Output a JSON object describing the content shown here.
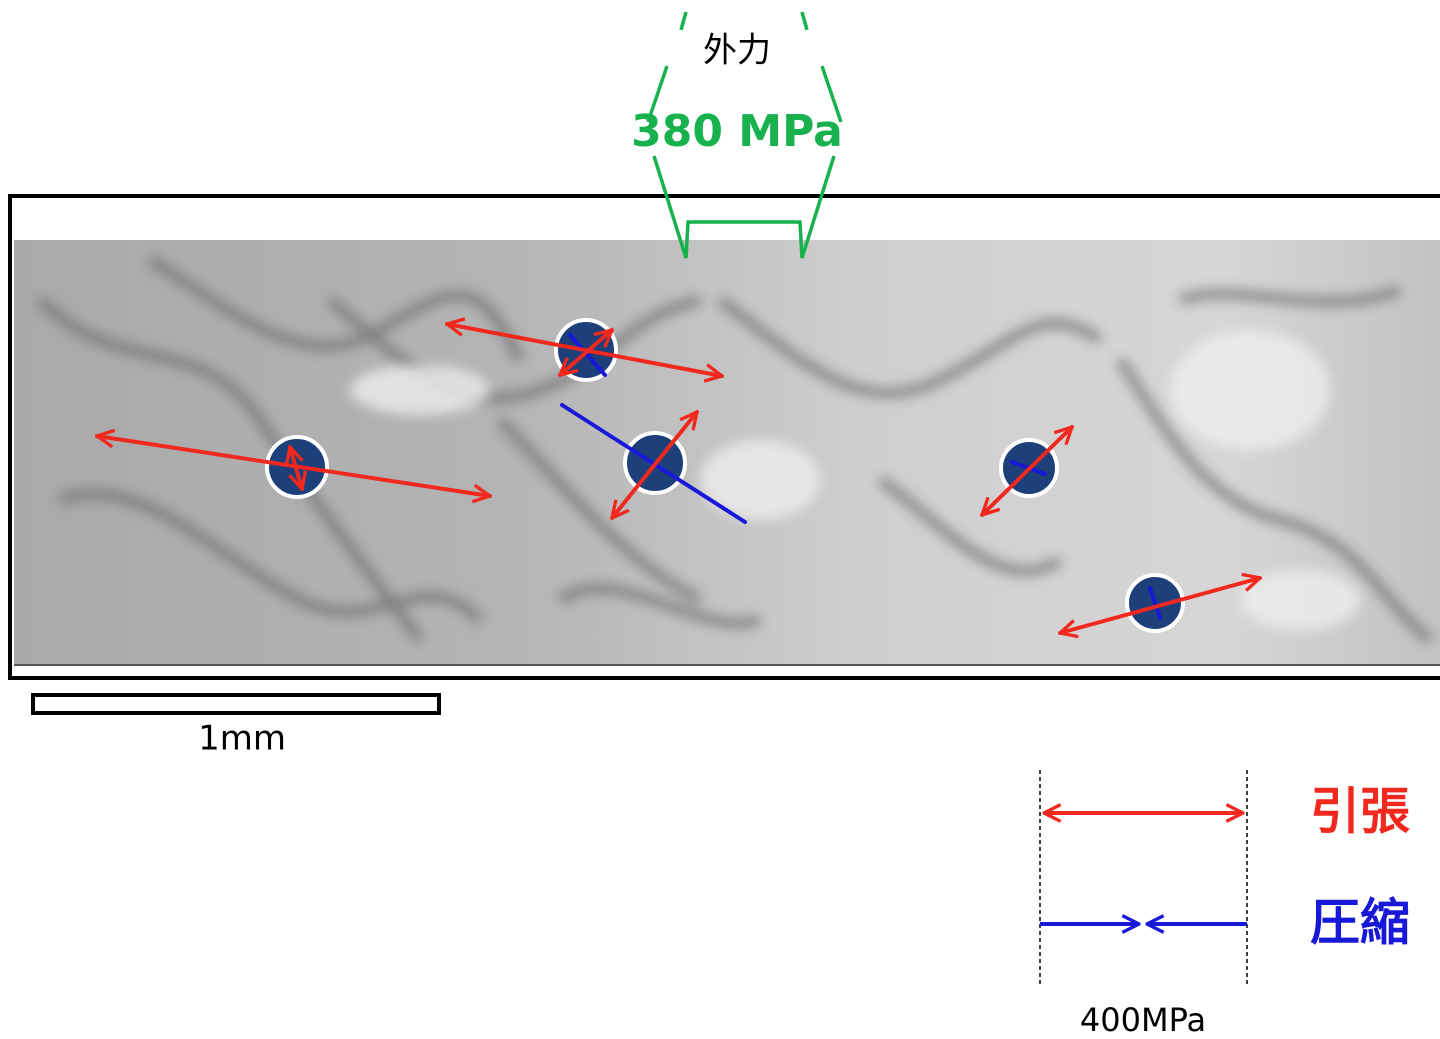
{
  "external_force": {
    "label": "外力",
    "value": "380 MPa"
  },
  "scale_bar": {
    "label": "1mm"
  },
  "legend": {
    "items": [
      {
        "label": "引張"
      },
      {
        "label": "圧縮"
      }
    ],
    "scale": "400MPa"
  }
}
